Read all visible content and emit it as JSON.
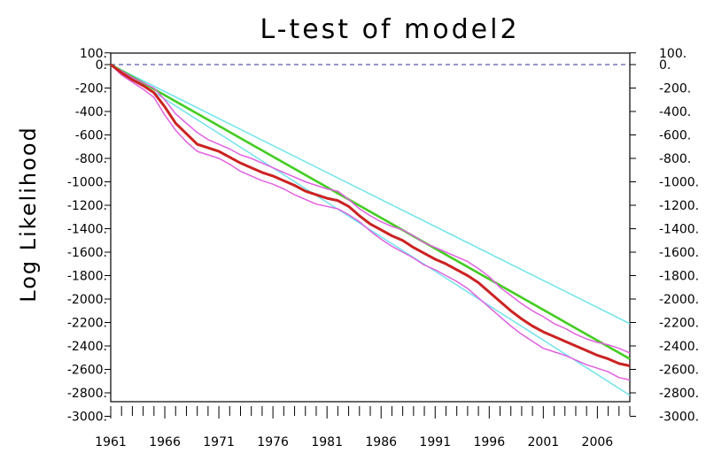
{
  "chart_data": {
    "type": "line",
    "title": "L-test of model2",
    "xlabel": "",
    "ylabel": "Log Likelihood",
    "xlim": [
      1961,
      2009
    ],
    "ylim": [
      -3000,
      100
    ],
    "x_tick_labels": [
      "1961",
      "1966",
      "1971",
      "1976",
      "1981",
      "1986",
      "1991",
      "1996",
      "2001",
      "2006"
    ],
    "y_tick_labels": [
      "100.",
      "0.",
      "-200.",
      "-400.",
      "-600.",
      "-800.",
      "-1000.",
      "-1200.",
      "-1400.",
      "-1600.",
      "-1800.",
      "-2000.",
      "-2200.",
      "-2400.",
      "-2600.",
      "-2800.",
      "-3000."
    ],
    "y_tick_values": [
      100,
      0,
      -200,
      -400,
      -600,
      -800,
      -1000,
      -1200,
      -1400,
      -1600,
      -1800,
      -2000,
      -2200,
      -2400,
      -2600,
      -2800,
      -3000
    ],
    "x_minor_step": 1,
    "reference_line": {
      "y": 0,
      "style": "dashed",
      "color": "#5a5aa8"
    },
    "series": [
      {
        "color": "#6fe3ea",
        "x": [
          1961,
          2009
        ],
        "y": [
          0,
          -2210
        ]
      },
      {
        "color": "#6fe3ea",
        "x": [
          1961,
          2009
        ],
        "y": [
          0,
          -2820
        ]
      },
      {
        "color": "#44cc22",
        "x": [
          1961,
          2009
        ],
        "y": [
          0,
          -2510
        ]
      },
      {
        "color": "#e060e0",
        "x": [
          1961,
          1962,
          1963,
          1964,
          1965,
          1966,
          1967,
          1968,
          1969,
          1970,
          1971,
          1972,
          1973,
          1974,
          1975,
          1976,
          1977,
          1978,
          1979,
          1980,
          1981,
          1982,
          1983,
          1984,
          1985,
          1986,
          1987,
          1988,
          1989,
          1990,
          1991,
          1992,
          1993,
          1994,
          1995,
          1996,
          1997,
          1998,
          1999,
          2000,
          2001,
          2002,
          2003,
          2004,
          2005,
          2006,
          2007,
          2008,
          2009
        ],
        "y": [
          0,
          -55,
          -110,
          -155,
          -200,
          -300,
          -420,
          -500,
          -580,
          -640,
          -680,
          -720,
          -770,
          -800,
          -840,
          -880,
          -920,
          -960,
          -1000,
          -1030,
          -1060,
          -1080,
          -1150,
          -1230,
          -1290,
          -1340,
          -1380,
          -1410,
          -1460,
          -1520,
          -1560,
          -1600,
          -1640,
          -1680,
          -1740,
          -1810,
          -1900,
          -1970,
          -2040,
          -2100,
          -2150,
          -2210,
          -2250,
          -2300,
          -2340,
          -2370,
          -2390,
          -2420,
          -2460
        ]
      },
      {
        "color": "#e060e0",
        "x": [
          1961,
          1962,
          1963,
          1964,
          1965,
          1966,
          1967,
          1968,
          1969,
          1970,
          1971,
          1972,
          1973,
          1974,
          1975,
          1976,
          1977,
          1978,
          1979,
          1980,
          1981,
          1982,
          1983,
          1984,
          1985,
          1986,
          1987,
          1988,
          1989,
          1990,
          1991,
          1992,
          1993,
          1994,
          1995,
          1996,
          1997,
          1998,
          1999,
          2000,
          2001,
          2002,
          2003,
          2004,
          2005,
          2006,
          2007,
          2008,
          2009
        ],
        "y": [
          0,
          -90,
          -150,
          -210,
          -280,
          -430,
          -560,
          -660,
          -740,
          -770,
          -800,
          -850,
          -910,
          -950,
          -990,
          -1020,
          -1060,
          -1110,
          -1150,
          -1190,
          -1210,
          -1230,
          -1280,
          -1340,
          -1420,
          -1490,
          -1550,
          -1600,
          -1650,
          -1710,
          -1750,
          -1800,
          -1850,
          -1910,
          -1990,
          -2070,
          -2150,
          -2230,
          -2300,
          -2360,
          -2420,
          -2450,
          -2480,
          -2520,
          -2560,
          -2590,
          -2620,
          -2670,
          -2690
        ]
      },
      {
        "color": "#cc2222",
        "x": [
          1961,
          1962,
          1963,
          1964,
          1965,
          1966,
          1967,
          1968,
          1969,
          1970,
          1971,
          1972,
          1973,
          1974,
          1975,
          1976,
          1977,
          1978,
          1979,
          1980,
          1981,
          1982,
          1983,
          1984,
          1985,
          1986,
          1987,
          1988,
          1989,
          1990,
          1991,
          1992,
          1993,
          1994,
          1995,
          1996,
          1997,
          1998,
          1999,
          2000,
          2001,
          2002,
          2003,
          2004,
          2005,
          2006,
          2007,
          2008,
          2009
        ],
        "y": [
          0,
          -70,
          -130,
          -180,
          -240,
          -360,
          -500,
          -590,
          -680,
          -710,
          -740,
          -790,
          -840,
          -880,
          -920,
          -950,
          -990,
          -1030,
          -1080,
          -1110,
          -1140,
          -1160,
          -1210,
          -1290,
          -1360,
          -1410,
          -1460,
          -1500,
          -1560,
          -1610,
          -1660,
          -1700,
          -1750,
          -1800,
          -1860,
          -1940,
          -2020,
          -2100,
          -2170,
          -2230,
          -2280,
          -2320,
          -2360,
          -2400,
          -2440,
          -2480,
          -2510,
          -2550,
          -2570
        ]
      }
    ]
  }
}
